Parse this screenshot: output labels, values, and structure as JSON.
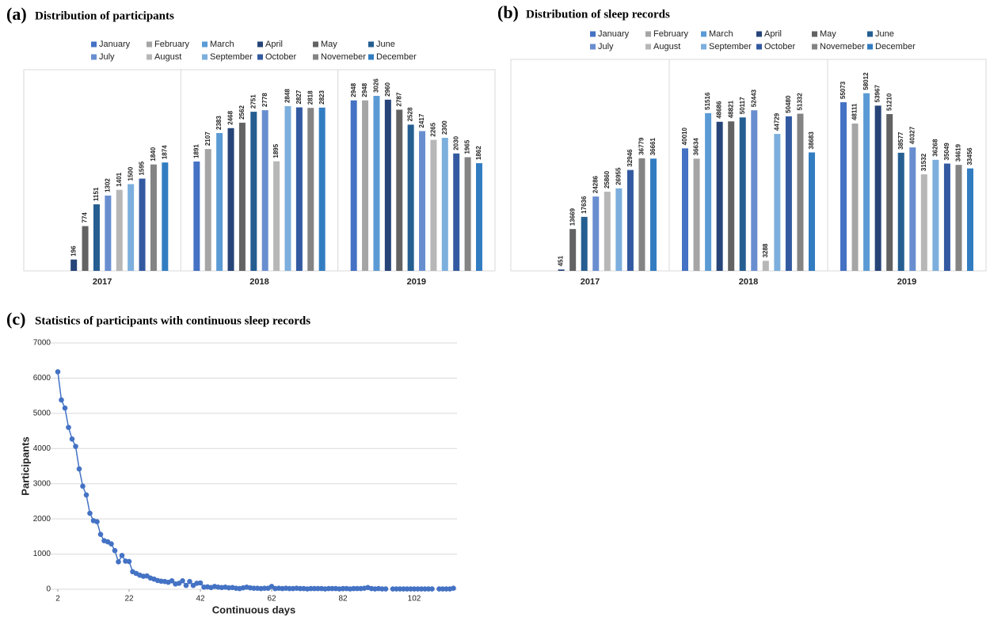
{
  "chart_data": [
    {
      "type": "bar",
      "label": "(a)",
      "title": "Distribution of participants",
      "legend": "top",
      "categories": [
        "2017",
        "2018",
        "2019"
      ],
      "series": [
        {
          "name": "January",
          "color": "#4472c4",
          "values": [
            null,
            1891,
            2948
          ]
        },
        {
          "name": "February",
          "color": "#a5a5a5",
          "values": [
            null,
            2107,
            2948
          ]
        },
        {
          "name": "March",
          "color": "#5b9bd5",
          "values": [
            null,
            2383,
            3026
          ]
        },
        {
          "name": "April",
          "color": "#264478",
          "values": [
            196,
            2468,
            2960
          ]
        },
        {
          "name": "May",
          "color": "#636363",
          "values": [
            774,
            2562,
            2787
          ]
        },
        {
          "name": "June",
          "color": "#255e91",
          "values": [
            1151,
            2751,
            2528
          ]
        },
        {
          "name": "July",
          "color": "#698ed0",
          "values": [
            1302,
            2778,
            2417
          ]
        },
        {
          "name": "August",
          "color": "#b7b7b7",
          "values": [
            1401,
            1895,
            2265
          ]
        },
        {
          "name": "September",
          "color": "#7cafdd",
          "values": [
            1500,
            2848,
            2300
          ]
        },
        {
          "name": "October",
          "color": "#335aa1",
          "values": [
            1595,
            2827,
            2030
          ]
        },
        {
          "name": "Novemeber",
          "color": "#848484",
          "values": [
            1840,
            2818,
            1965
          ]
        },
        {
          "name": "December",
          "color": "#327dc2",
          "values": [
            1874,
            2823,
            1862
          ]
        }
      ]
    },
    {
      "type": "bar",
      "label": "(b)",
      "title": "Distribution of sleep records",
      "legend": "top",
      "categories": [
        "2017",
        "2018",
        "2019"
      ],
      "series": [
        {
          "name": "January",
          "color": "#4472c4",
          "values": [
            null,
            40010,
            55073
          ]
        },
        {
          "name": "February",
          "color": "#a5a5a5",
          "values": [
            null,
            36634,
            48111
          ]
        },
        {
          "name": "March",
          "color": "#5b9bd5",
          "values": [
            null,
            51516,
            58012
          ]
        },
        {
          "name": "April",
          "color": "#264478",
          "values": [
            451,
            48686,
            53967
          ]
        },
        {
          "name": "May",
          "color": "#636363",
          "values": [
            13669,
            48821,
            51210
          ]
        },
        {
          "name": "June",
          "color": "#255e91",
          "values": [
            17636,
            50117,
            38577
          ]
        },
        {
          "name": "July",
          "color": "#698ed0",
          "values": [
            24286,
            52443,
            40327
          ]
        },
        {
          "name": "August",
          "color": "#b7b7b7",
          "values": [
            25860,
            3288,
            31532
          ]
        },
        {
          "name": "September",
          "color": "#7cafdd",
          "values": [
            26955,
            44729,
            36268
          ]
        },
        {
          "name": "October",
          "color": "#335aa1",
          "values": [
            32946,
            50480,
            35049
          ]
        },
        {
          "name": "Novemeber",
          "color": "#848484",
          "values": [
            36779,
            51332,
            34619
          ]
        },
        {
          "name": "December",
          "color": "#327dc2",
          "values": [
            36661,
            38683,
            33456
          ]
        }
      ]
    },
    {
      "type": "line",
      "label": "(c)",
      "title": "Statistics of participants with continuous sleep records",
      "x_label": "Continuous days",
      "y_label": "Participants",
      "color": "#4472c4",
      "grid": true,
      "xlim": [
        0,
        114
      ],
      "xticks": [
        2,
        22,
        42,
        62,
        82,
        102
      ],
      "ylim": [
        0,
        7000
      ],
      "yticks": [
        0,
        1000,
        2000,
        3000,
        4000,
        5000,
        6000,
        7000
      ],
      "x": [
        2,
        3,
        4,
        5,
        6,
        7,
        8,
        9,
        10,
        11,
        12,
        13,
        14,
        15,
        16,
        17,
        18,
        19,
        20,
        21,
        22,
        23,
        24,
        25,
        26,
        27,
        28,
        29,
        30,
        31,
        32,
        33,
        34,
        35,
        36,
        37,
        38,
        39,
        40,
        41,
        42,
        43,
        44,
        45,
        46,
        47,
        48,
        49,
        50,
        51,
        52,
        53,
        54,
        55,
        56,
        57,
        58,
        59,
        60,
        61,
        62,
        63,
        64,
        65,
        66,
        67,
        68,
        69,
        70,
        71,
        72,
        73,
        74,
        75,
        76,
        77,
        78,
        79,
        80,
        81,
        82,
        83,
        84,
        85,
        86,
        87,
        88,
        89,
        90,
        91,
        92,
        93,
        94,
        95,
        96,
        97,
        98,
        99,
        100,
        101,
        102,
        103,
        104,
        105,
        106,
        107,
        108,
        109,
        110,
        111,
        112,
        113
      ],
      "values": [
        6180,
        5380,
        5150,
        4600,
        4270,
        4060,
        3420,
        2930,
        2680,
        2160,
        1950,
        1920,
        1560,
        1380,
        1350,
        1290,
        1100,
        780,
        960,
        800,
        790,
        500,
        450,
        400,
        370,
        380,
        320,
        290,
        250,
        230,
        220,
        200,
        240,
        150,
        170,
        240,
        110,
        220,
        110,
        170,
        180,
        60,
        70,
        50,
        80,
        60,
        50,
        60,
        40,
        50,
        30,
        20,
        40,
        60,
        40,
        30,
        30,
        20,
        30,
        30,
        80,
        20,
        30,
        20,
        30,
        20,
        20,
        30,
        20,
        20,
        10,
        20,
        20,
        20,
        20,
        10,
        20,
        20,
        20,
        10,
        20,
        20,
        10,
        20,
        20,
        20,
        30,
        50,
        20,
        10,
        20,
        10,
        10,
        null,
        10,
        10,
        10,
        10,
        10,
        10,
        10,
        10,
        10,
        10,
        10,
        10,
        null,
        10,
        10,
        10,
        10,
        30
      ]
    }
  ]
}
